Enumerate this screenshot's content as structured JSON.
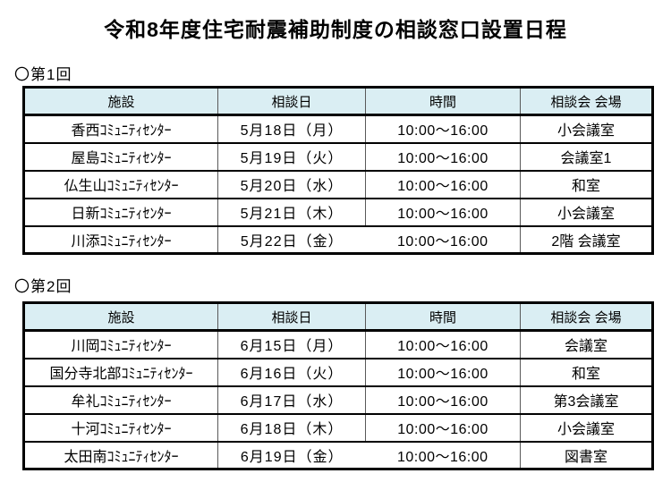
{
  "title": "令和8年度住宅耐震補助制度の相談窓口設置日程",
  "colors": {
    "header_bg": "#daeef3",
    "border_outer": "#000000",
    "border_inner": "#595959",
    "text": "#000000"
  },
  "sections": [
    {
      "label": "〇第1回",
      "columns": [
        "施設",
        "相談日",
        "時間",
        "相談会 会場"
      ],
      "rows": [
        [
          "香西ｺﾐｭﾆﾃｨｾﾝﾀｰ",
          "5月18日（月）",
          "10:00～16:00",
          "小会議室"
        ],
        [
          "屋島ｺﾐｭﾆﾃｨｾﾝﾀｰ",
          "5月19日（火）",
          "10:00～16:00",
          "会議室1"
        ],
        [
          "仏生山ｺﾐｭﾆﾃｨｾﾝﾀｰ",
          "5月20日（水）",
          "10:00～16:00",
          "和室"
        ],
        [
          "日新ｺﾐｭﾆﾃｨｾﾝﾀｰ",
          "5月21日（木）",
          "10:00～16:00",
          "小会議室"
        ],
        [
          "川添ｺﾐｭﾆﾃｨｾﾝﾀｰ",
          "5月22日（金）",
          "10:00～16:00",
          "2階 会議室"
        ]
      ]
    },
    {
      "label": "〇第2回",
      "columns": [
        "施設",
        "相談日",
        "時間",
        "相談会 会場"
      ],
      "rows": [
        [
          "川岡ｺﾐｭﾆﾃｨｾﾝﾀｰ",
          "6月15日（月）",
          "10:00～16:00",
          "会議室"
        ],
        [
          "国分寺北部ｺﾐｭﾆﾃｨｾﾝﾀｰ",
          "6月16日（火）",
          "10:00～16:00",
          "和室"
        ],
        [
          "牟礼ｺﾐｭﾆﾃｨｾﾝﾀｰ",
          "6月17日（水）",
          "10:00～16:00",
          "第3会議室"
        ],
        [
          "十河ｺﾐｭﾆﾃｨｾﾝﾀｰ",
          "6月18日（木）",
          "10:00～16:00",
          "小会議室"
        ],
        [
          "太田南ｺﾐｭﾆﾃｨｾﾝﾀｰ",
          "6月19日（金）",
          "10:00～16:00",
          "図書室"
        ]
      ]
    }
  ]
}
